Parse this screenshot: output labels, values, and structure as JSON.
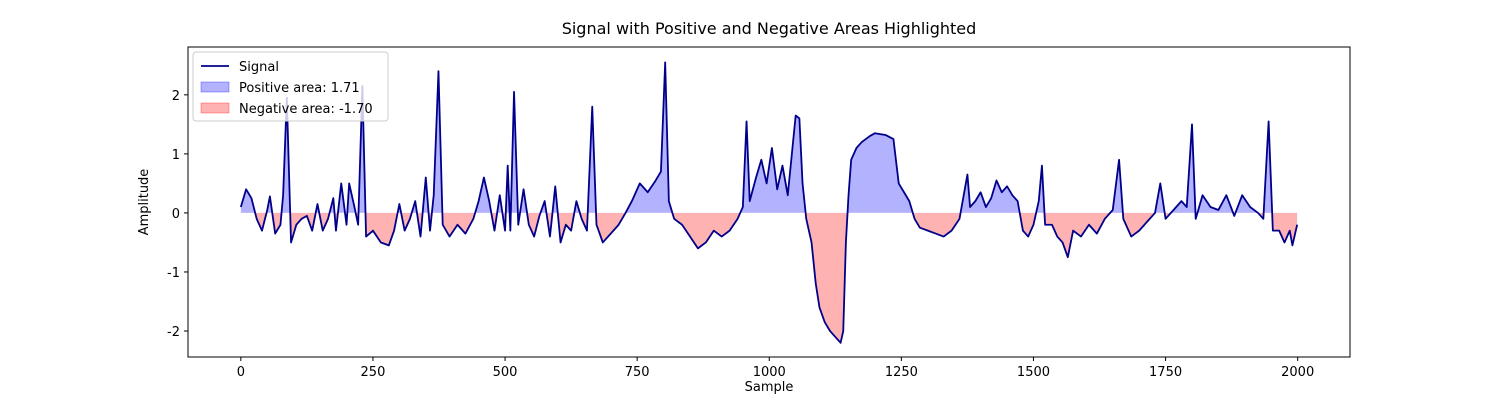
{
  "chart_data": {
    "type": "line",
    "title": "Signal with Positive and Negative Areas Highlighted",
    "x_label": "Sample",
    "y_label": "Amplitude",
    "x": [
      0,
      10,
      20,
      30,
      40,
      50,
      55,
      65,
      75,
      80,
      87,
      95,
      105,
      115,
      125,
      135,
      145,
      155,
      165,
      175,
      180,
      190,
      200,
      205,
      215,
      222,
      230,
      237,
      250,
      265,
      280,
      290,
      300,
      310,
      320,
      330,
      340,
      350,
      358,
      365,
      374,
      382,
      395,
      410,
      425,
      440,
      450,
      460,
      470,
      480,
      490,
      500,
      505,
      510,
      517,
      525,
      535,
      545,
      555,
      565,
      575,
      585,
      595,
      605,
      615,
      625,
      635,
      645,
      655,
      665,
      673,
      685,
      700,
      715,
      728,
      740,
      755,
      770,
      785,
      795,
      803,
      810,
      820,
      835,
      850,
      865,
      880,
      895,
      910,
      925,
      940,
      950,
      957,
      963,
      975,
      985,
      995,
      1005,
      1015,
      1025,
      1035,
      1045,
      1050,
      1057,
      1063,
      1070,
      1080,
      1088,
      1095,
      1105,
      1115,
      1125,
      1135,
      1140,
      1145,
      1150,
      1155,
      1165,
      1175,
      1190,
      1200,
      1220,
      1235,
      1245,
      1255,
      1265,
      1275,
      1285,
      1300,
      1315,
      1330,
      1345,
      1360,
      1368,
      1375,
      1380,
      1390,
      1400,
      1410,
      1420,
      1430,
      1440,
      1450,
      1460,
      1470,
      1480,
      1490,
      1500,
      1510,
      1516,
      1522,
      1535,
      1545,
      1555,
      1565,
      1575,
      1590,
      1605,
      1620,
      1635,
      1650,
      1662,
      1670,
      1685,
      1700,
      1715,
      1730,
      1740,
      1750,
      1765,
      1780,
      1790,
      1800,
      1807,
      1820,
      1835,
      1850,
      1865,
      1880,
      1895,
      1910,
      1925,
      1935,
      1945,
      1953,
      1965,
      1975,
      1985,
      1990,
      1999
    ],
    "series": [
      {
        "name": "Signal",
        "color": "#00008b",
        "values": [
          0.1,
          0.4,
          0.25,
          -0.1,
          -0.3,
          0.05,
          0.28,
          -0.35,
          -0.2,
          0.3,
          1.95,
          -0.5,
          -0.2,
          -0.1,
          -0.05,
          -0.3,
          0.15,
          -0.3,
          -0.1,
          0.25,
          -0.3,
          0.5,
          -0.2,
          0.5,
          0.1,
          -0.2,
          2.15,
          -0.4,
          -0.3,
          -0.5,
          -0.55,
          -0.3,
          0.15,
          -0.3,
          -0.1,
          0.2,
          -0.4,
          0.6,
          -0.3,
          0.3,
          2.4,
          -0.2,
          -0.4,
          -0.2,
          -0.35,
          -0.1,
          0.2,
          0.6,
          0.2,
          -0.3,
          0.3,
          -0.3,
          0.8,
          -0.3,
          2.05,
          -0.2,
          0.4,
          -0.2,
          -0.4,
          -0.05,
          0.2,
          -0.4,
          0.45,
          -0.5,
          -0.2,
          -0.3,
          0.2,
          -0.1,
          -0.3,
          1.8,
          -0.2,
          -0.5,
          -0.35,
          -0.2,
          0.0,
          0.2,
          0.5,
          0.35,
          0.55,
          0.7,
          2.55,
          0.2,
          -0.1,
          -0.2,
          -0.4,
          -0.6,
          -0.5,
          -0.3,
          -0.4,
          -0.3,
          -0.1,
          0.1,
          1.55,
          0.2,
          0.6,
          0.9,
          0.5,
          1.1,
          0.4,
          0.8,
          0.3,
          1.2,
          1.65,
          1.6,
          0.5,
          -0.1,
          -0.5,
          -1.2,
          -1.6,
          -1.85,
          -2.0,
          -2.1,
          -2.2,
          -2.0,
          -0.5,
          0.3,
          0.9,
          1.1,
          1.2,
          1.3,
          1.35,
          1.32,
          1.25,
          0.5,
          0.35,
          0.2,
          -0.1,
          -0.25,
          -0.3,
          -0.35,
          -0.4,
          -0.3,
          -0.1,
          0.3,
          0.65,
          0.1,
          0.2,
          0.35,
          0.1,
          0.25,
          0.55,
          0.35,
          0.45,
          0.3,
          0.2,
          -0.3,
          -0.4,
          -0.2,
          0.2,
          0.8,
          -0.2,
          -0.2,
          -0.4,
          -0.5,
          -0.75,
          -0.3,
          -0.4,
          -0.2,
          -0.35,
          -0.1,
          0.05,
          0.9,
          -0.1,
          -0.4,
          -0.3,
          -0.15,
          0.0,
          0.5,
          -0.1,
          0.05,
          0.2,
          0.1,
          1.5,
          -0.1,
          0.3,
          0.1,
          0.05,
          0.3,
          -0.05,
          0.3,
          0.1,
          0.0,
          -0.1,
          1.55,
          -0.3,
          -0.3,
          -0.5,
          -0.3,
          -0.55,
          -0.2
        ]
      }
    ],
    "areas": [
      {
        "name": "Positive area: 1.71",
        "color": "#0000ff",
        "side": "positive"
      },
      {
        "name": "Negative area: -1.70",
        "color": "#ff0000",
        "side": "negative"
      }
    ],
    "xlim": [
      -100,
      2099
    ],
    "ylim": [
      -2.44,
      2.81
    ],
    "xticks": [
      0,
      250,
      500,
      750,
      1000,
      1250,
      1500,
      1750,
      2000
    ],
    "yticks": [
      -2,
      -1,
      0,
      1,
      2
    ],
    "legend": "upper left"
  }
}
